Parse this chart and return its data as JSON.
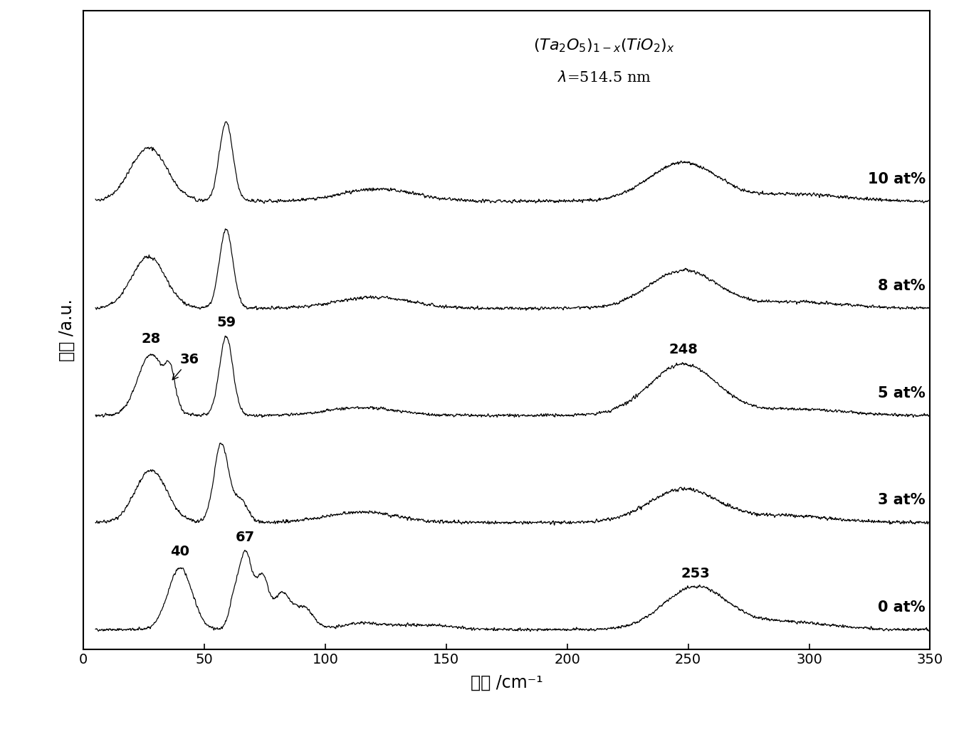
{
  "xlabel": "波数 /cm⁻¹",
  "ylabel": "强度 /a.u.",
  "xmin": 0,
  "xmax": 350,
  "spectra_labels": [
    "0 at%",
    "3 at%",
    "5 at%",
    "8 at%",
    "10 at%"
  ],
  "offsets": [
    0.0,
    1.35,
    2.7,
    4.05,
    5.4
  ],
  "xticks": [
    0,
    50,
    100,
    150,
    200,
    250,
    300,
    350
  ],
  "line_color": "#000000",
  "background_color": "#ffffff",
  "label_fontsize": 15,
  "tick_fontsize": 14,
  "annotation_fontsize": 14,
  "title_fontsize": 15
}
